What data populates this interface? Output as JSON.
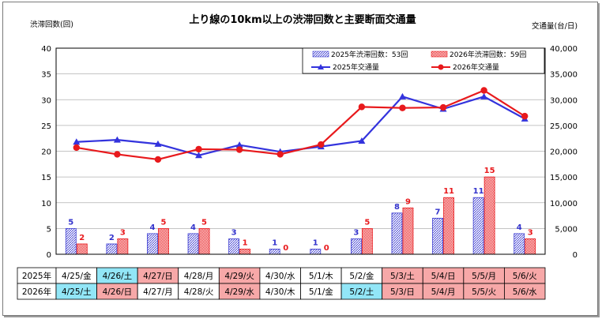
{
  "chart_data": {
    "type": "bar-line-combo",
    "title": "上り線の10km以上の渋滞回数と主要断面交通量",
    "ylabel_left": "渋滞回数(回)",
    "ylabel_right": "交通量(台/日)",
    "ylim_left": [
      0,
      40
    ],
    "ylim_right": [
      0,
      40000
    ],
    "yticks_left": [
      "0",
      "5",
      "10",
      "15",
      "20",
      "25",
      "30",
      "35",
      "40"
    ],
    "yticks_right": [
      "0",
      "5,000",
      "10,000",
      "15,000",
      "20,000",
      "25,000",
      "30,000",
      "35,000",
      "40,000"
    ],
    "grid": "horizontal",
    "legend_position": "top-right",
    "bar_series": [
      {
        "name": "2025年渋滞回数：53回",
        "color": "#3b3bd0",
        "label_color": "#3333cc",
        "values": [
          5,
          2,
          4,
          4,
          3,
          1,
          1,
          3,
          8,
          7,
          11,
          4
        ],
        "labels": [
          "5",
          "2",
          "4",
          "4",
          "3",
          "1",
          "1",
          "3",
          "8",
          "7",
          "11",
          "4"
        ]
      },
      {
        "name": "2026年渋滞回数：59回",
        "color": "#e8191c",
        "label_color": "#e8191c",
        "values": [
          2,
          3,
          5,
          5,
          1,
          0,
          0,
          5,
          9,
          11,
          15,
          3
        ],
        "labels": [
          "2",
          "3",
          "5",
          "5",
          "1",
          "0",
          "0",
          "5",
          "9",
          "11",
          "15",
          "3"
        ]
      }
    ],
    "line_series": [
      {
        "name": "2025年交通量",
        "color": "#3333dd",
        "marker": "triangle",
        "values": [
          21800,
          22200,
          21400,
          19200,
          21200,
          19900,
          20900,
          22000,
          30600,
          28200,
          30600,
          26300
        ]
      },
      {
        "name": "2026年交通量",
        "color": "#e8191c",
        "marker": "circle",
        "values": [
          20700,
          19400,
          18400,
          20400,
          20300,
          19400,
          21300,
          28600,
          28400,
          28500,
          31800,
          26800
        ]
      }
    ],
    "table": {
      "row_labels": [
        "2025年",
        "2026年"
      ],
      "rows": [
        [
          {
            "text": "4/25/金",
            "bg": "#ffffff"
          },
          {
            "text": "4/26/土",
            "bg": "#92e6f7"
          },
          {
            "text": "4/27/日",
            "bg": "#f7a8a8"
          },
          {
            "text": "4/28/月",
            "bg": "#ffffff"
          },
          {
            "text": "4/29/火",
            "bg": "#f7a8a8"
          },
          {
            "text": "4/30/水",
            "bg": "#ffffff"
          },
          {
            "text": "5/1/木",
            "bg": "#ffffff"
          },
          {
            "text": "5/2/金",
            "bg": "#ffffff"
          },
          {
            "text": "5/3/土",
            "bg": "#f7a8a8"
          },
          {
            "text": "5/4/日",
            "bg": "#f7a8a8"
          },
          {
            "text": "5/5/月",
            "bg": "#f7a8a8"
          },
          {
            "text": "5/6/火",
            "bg": "#f7a8a8"
          }
        ],
        [
          {
            "text": "4/25/土",
            "bg": "#92e6f7"
          },
          {
            "text": "4/26/日",
            "bg": "#f7a8a8"
          },
          {
            "text": "4/27/月",
            "bg": "#ffffff"
          },
          {
            "text": "4/28/火",
            "bg": "#ffffff"
          },
          {
            "text": "4/29/水",
            "bg": "#f7a8a8"
          },
          {
            "text": "4/30/木",
            "bg": "#ffffff"
          },
          {
            "text": "5/1/金",
            "bg": "#ffffff"
          },
          {
            "text": "5/2/土",
            "bg": "#92e6f7"
          },
          {
            "text": "5/3/日",
            "bg": "#f7a8a8"
          },
          {
            "text": "5/4/月",
            "bg": "#f7a8a8"
          },
          {
            "text": "5/5/火",
            "bg": "#f7a8a8"
          },
          {
            "text": "5/6/水",
            "bg": "#f7a8a8"
          }
        ]
      ]
    }
  }
}
